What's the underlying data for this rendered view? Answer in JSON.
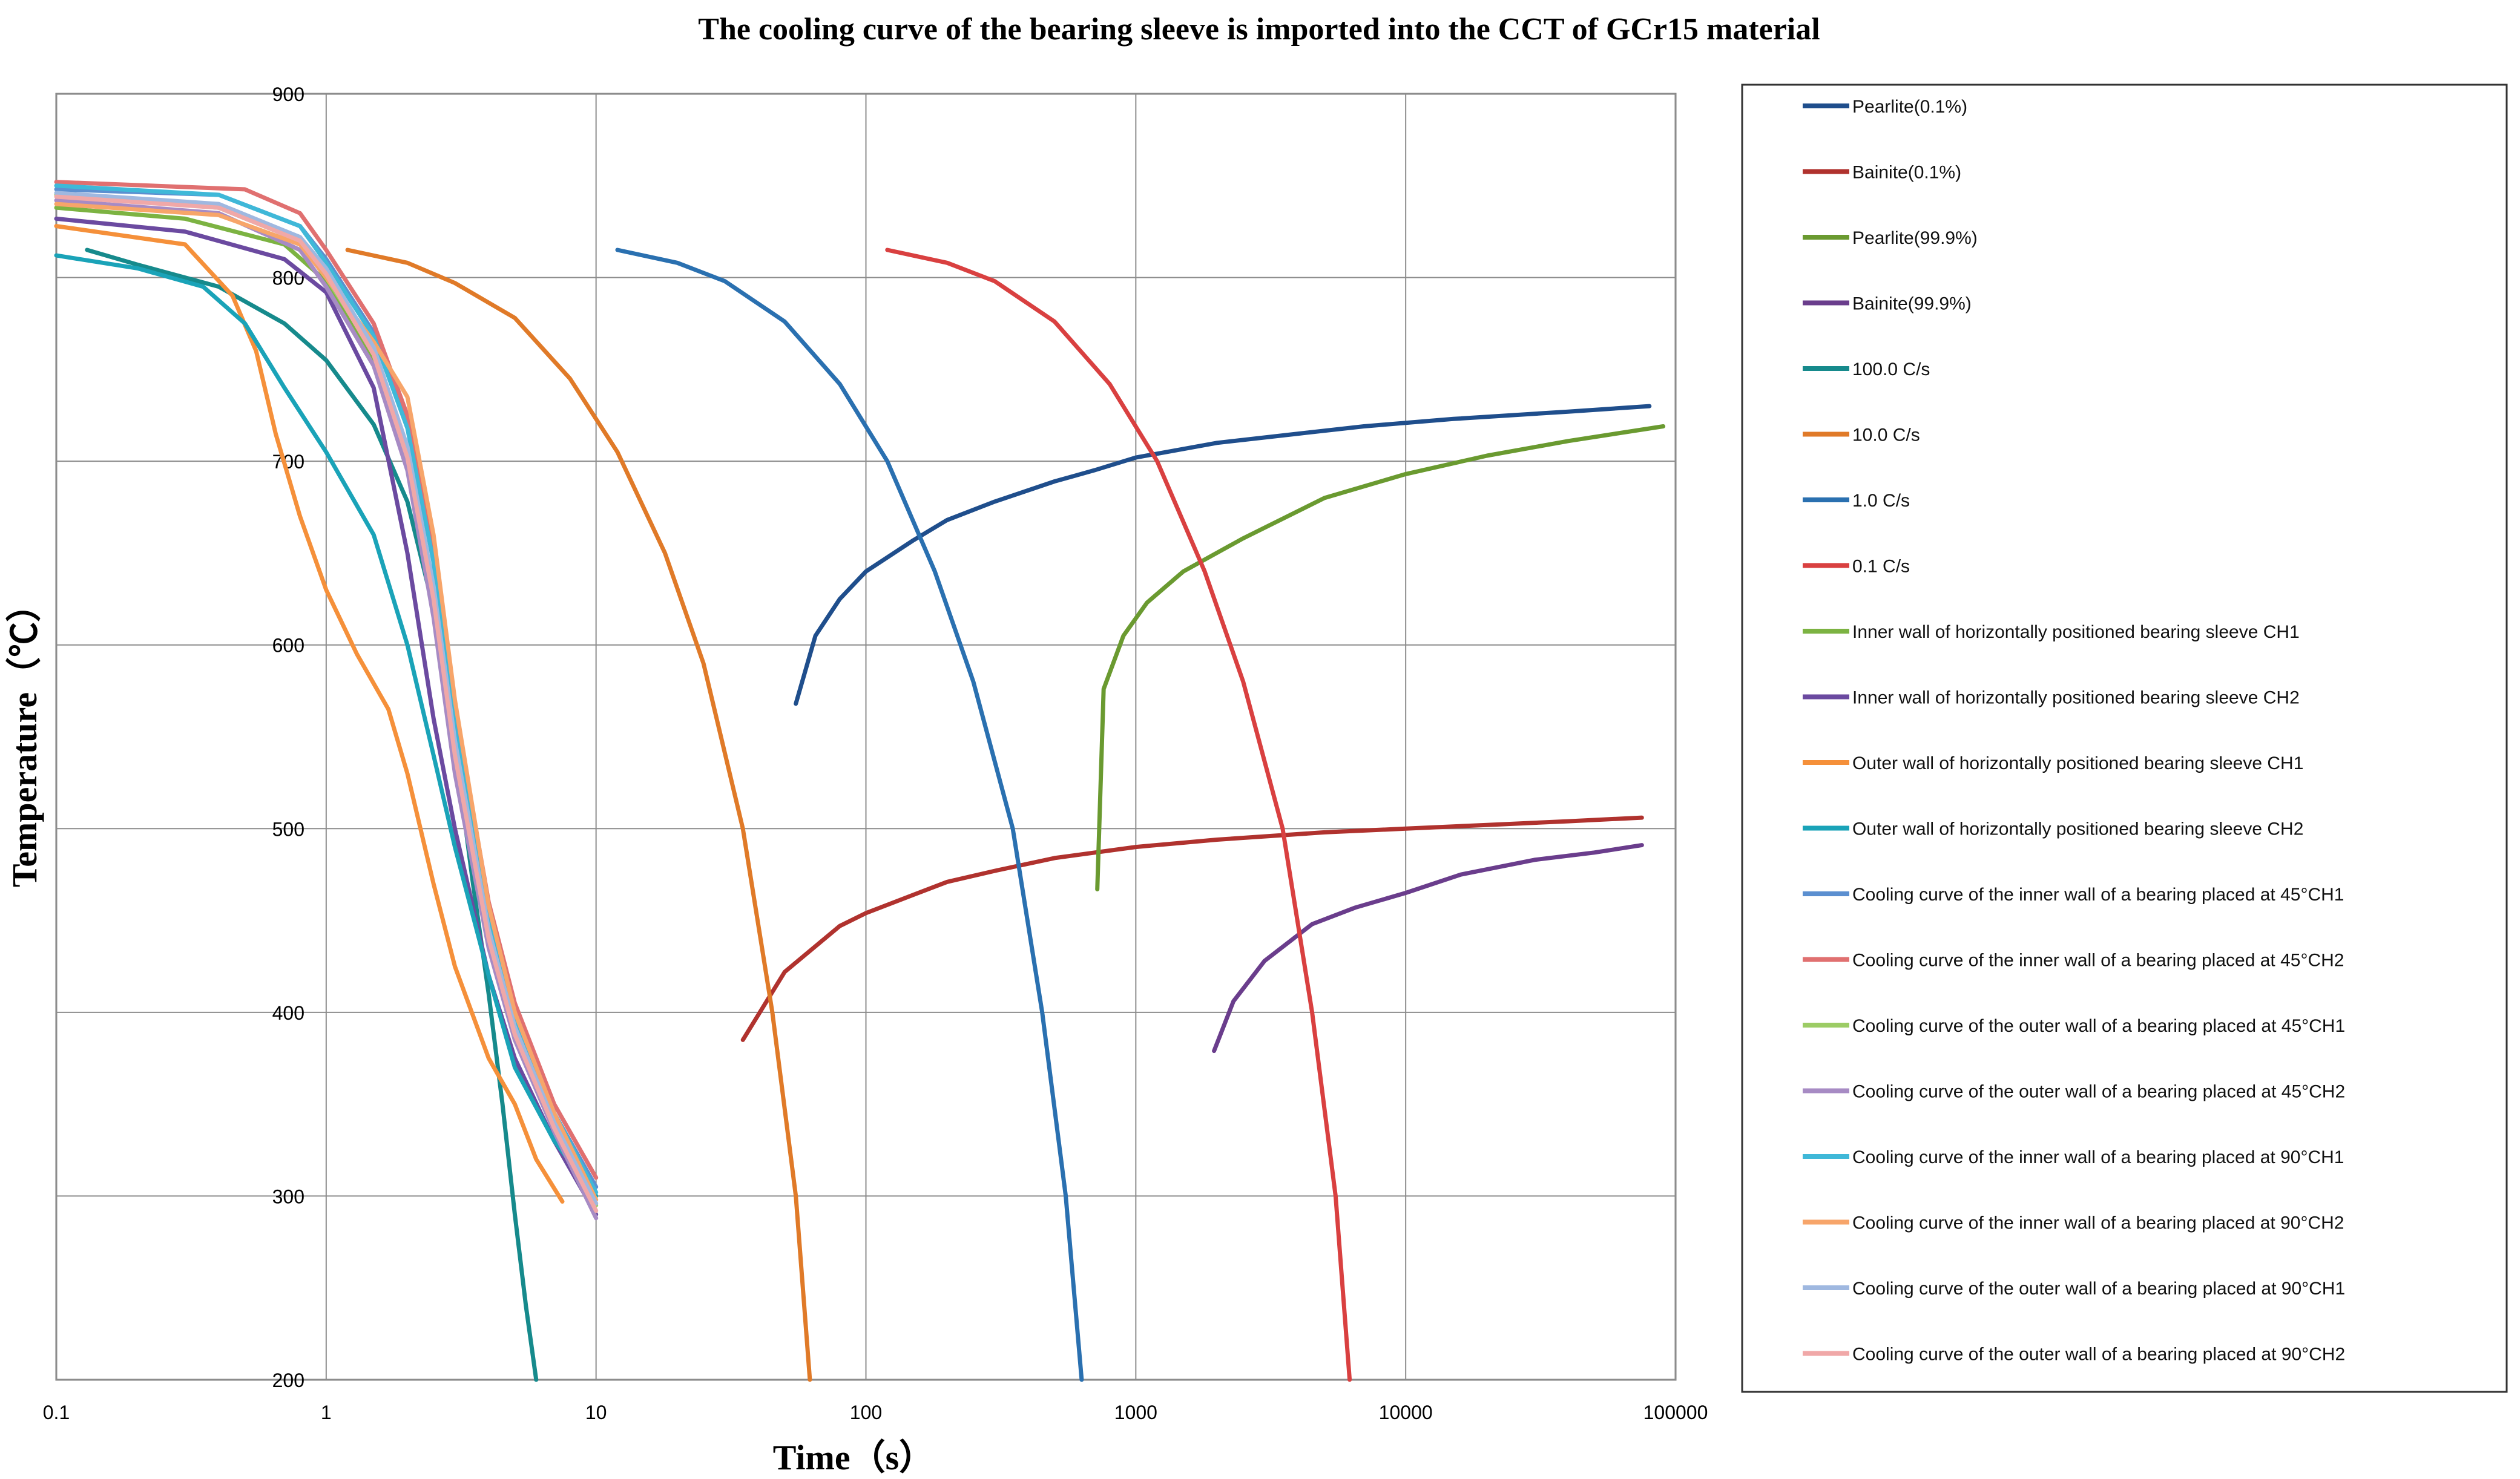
{
  "chart_data": {
    "type": "line",
    "title": "The cooling curve of the bearing sleeve is imported into the CCT of GCr15 material",
    "xlabel": "Time（s）",
    "ylabel": "Temperature（℃）",
    "x_scale": "log",
    "xlim": [
      0.1,
      100000
    ],
    "ylim": [
      200,
      900
    ],
    "x_ticks": [
      {
        "value": 0.1,
        "label": "0.1"
      },
      {
        "value": 1,
        "label": "1"
      },
      {
        "value": 10,
        "label": "10"
      },
      {
        "value": 100,
        "label": "100"
      },
      {
        "value": 1000,
        "label": "1000"
      },
      {
        "value": 10000,
        "label": "10000"
      },
      {
        "value": 100000,
        "label": "100000"
      }
    ],
    "y_ticks": [
      {
        "value": 200,
        "label": "200"
      },
      {
        "value": 300,
        "label": "300"
      },
      {
        "value": 400,
        "label": "400"
      },
      {
        "value": 500,
        "label": "500"
      },
      {
        "value": 600,
        "label": "600"
      },
      {
        "value": 700,
        "label": "700"
      },
      {
        "value": 800,
        "label": "800"
      },
      {
        "value": 900,
        "label": "900"
      }
    ],
    "grid": true,
    "legend_position": "right",
    "series": [
      {
        "name": "Pearlite(0.1%)",
        "color": "#1f4e8c",
        "points": [
          [
            55,
            568
          ],
          [
            65,
            605
          ],
          [
            80,
            625
          ],
          [
            100,
            640
          ],
          [
            150,
            657
          ],
          [
            200,
            668
          ],
          [
            300,
            678
          ],
          [
            500,
            689
          ],
          [
            700,
            695
          ],
          [
            1000,
            702
          ],
          [
            2000,
            710
          ],
          [
            4000,
            715
          ],
          [
            7000,
            719
          ],
          [
            15000,
            723
          ],
          [
            40000,
            727
          ],
          [
            80000,
            730
          ]
        ]
      },
      {
        "name": "Bainite(0.1%)",
        "color": "#b0322e",
        "points": [
          [
            35,
            385
          ],
          [
            50,
            422
          ],
          [
            80,
            447
          ],
          [
            100,
            454
          ],
          [
            150,
            464
          ],
          [
            200,
            471
          ],
          [
            300,
            477
          ],
          [
            500,
            484
          ],
          [
            1000,
            490
          ],
          [
            2000,
            494
          ],
          [
            5000,
            498
          ],
          [
            10000,
            500
          ],
          [
            20000,
            502
          ],
          [
            40000,
            504
          ],
          [
            75000,
            506
          ]
        ]
      },
      {
        "name": "Pearlite(99.9%)",
        "color": "#6a9a30",
        "points": [
          [
            720,
            467
          ],
          [
            760,
            576
          ],
          [
            900,
            605
          ],
          [
            1100,
            623
          ],
          [
            1500,
            640
          ],
          [
            2500,
            658
          ],
          [
            5000,
            680
          ],
          [
            10000,
            693
          ],
          [
            20000,
            703
          ],
          [
            40000,
            711
          ],
          [
            90000,
            719
          ]
        ]
      },
      {
        "name": "Bainite(99.9%)",
        "color": "#6a3d8c",
        "points": [
          [
            1950,
            379
          ],
          [
            2300,
            406
          ],
          [
            3000,
            428
          ],
          [
            4500,
            448
          ],
          [
            6500,
            457
          ],
          [
            10000,
            465
          ],
          [
            16000,
            475
          ],
          [
            30000,
            483
          ],
          [
            50000,
            487
          ],
          [
            75000,
            491
          ]
        ]
      },
      {
        "name": "100.0 C/s",
        "color": "#168a8c",
        "points": [
          [
            0.13,
            815
          ],
          [
            0.2,
            807
          ],
          [
            0.4,
            795
          ],
          [
            0.7,
            775
          ],
          [
            1,
            755
          ],
          [
            1.5,
            720
          ],
          [
            2,
            678
          ],
          [
            2.5,
            620
          ],
          [
            3,
            545
          ],
          [
            3.5,
            470
          ],
          [
            4,
            410
          ],
          [
            4.5,
            350
          ],
          [
            5,
            290
          ],
          [
            5.5,
            240
          ],
          [
            6,
            200
          ]
        ]
      },
      {
        "name": "10.0 C/s",
        "color": "#e07a28",
        "points": [
          [
            1.2,
            815
          ],
          [
            2,
            808
          ],
          [
            3,
            797
          ],
          [
            5,
            778
          ],
          [
            8,
            745
          ],
          [
            12,
            705
          ],
          [
            18,
            650
          ],
          [
            25,
            590
          ],
          [
            35,
            500
          ],
          [
            45,
            400
          ],
          [
            55,
            300
          ],
          [
            62,
            200
          ]
        ]
      },
      {
        "name": "1.0 C/s",
        "color": "#2a70b0",
        "points": [
          [
            12,
            815
          ],
          [
            20,
            808
          ],
          [
            30,
            798
          ],
          [
            50,
            776
          ],
          [
            80,
            742
          ],
          [
            120,
            700
          ],
          [
            180,
            640
          ],
          [
            250,
            580
          ],
          [
            350,
            500
          ],
          [
            450,
            400
          ],
          [
            550,
            300
          ],
          [
            630,
            200
          ]
        ]
      },
      {
        "name": "0.1 C/s",
        "color": "#d94040",
        "points": [
          [
            120,
            815
          ],
          [
            200,
            808
          ],
          [
            300,
            798
          ],
          [
            500,
            776
          ],
          [
            800,
            742
          ],
          [
            1200,
            700
          ],
          [
            1800,
            640
          ],
          [
            2500,
            580
          ],
          [
            3500,
            500
          ],
          [
            4500,
            400
          ],
          [
            5500,
            300
          ],
          [
            6200,
            200
          ]
        ]
      },
      {
        "name": "Inner wall of horizontally positioned bearing sleeve CH1",
        "color": "#7cb342",
        "points": [
          [
            0.1,
            838
          ],
          [
            0.3,
            832
          ],
          [
            0.7,
            818
          ],
          [
            1,
            798
          ],
          [
            1.5,
            755
          ],
          [
            2,
            700
          ],
          [
            2.5,
            620
          ],
          [
            3,
            540
          ],
          [
            4,
            440
          ],
          [
            5,
            385
          ],
          [
            7,
            340
          ],
          [
            10,
            300
          ]
        ]
      },
      {
        "name": "Inner wall of horizontally positioned bearing sleeve CH2",
        "color": "#6b4aa0",
        "points": [
          [
            0.1,
            832
          ],
          [
            0.3,
            825
          ],
          [
            0.7,
            810
          ],
          [
            1,
            792
          ],
          [
            1.5,
            740
          ],
          [
            2,
            650
          ],
          [
            2.5,
            560
          ],
          [
            3,
            500
          ],
          [
            4,
            420
          ],
          [
            5,
            375
          ],
          [
            7,
            330
          ],
          [
            10,
            290
          ]
        ]
      },
      {
        "name": "Outer wall of horizontally positioned bearing sleeve CH1",
        "color": "#f5903a",
        "points": [
          [
            0.1,
            828
          ],
          [
            0.3,
            818
          ],
          [
            0.45,
            790
          ],
          [
            0.55,
            760
          ],
          [
            0.65,
            715
          ],
          [
            0.8,
            670
          ],
          [
            1,
            630
          ],
          [
            1.3,
            595
          ],
          [
            1.7,
            565
          ],
          [
            2,
            530
          ],
          [
            2.5,
            470
          ],
          [
            3,
            425
          ],
          [
            4,
            375
          ],
          [
            5,
            350
          ],
          [
            6,
            320
          ],
          [
            7.5,
            297
          ]
        ]
      },
      {
        "name": "Outer wall of horizontally positioned bearing sleeve CH2",
        "color": "#1aa3b8",
        "points": [
          [
            0.1,
            812
          ],
          [
            0.2,
            805
          ],
          [
            0.35,
            795
          ],
          [
            0.5,
            775
          ],
          [
            0.7,
            740
          ],
          [
            1,
            705
          ],
          [
            1.5,
            660
          ],
          [
            2,
            600
          ],
          [
            2.5,
            540
          ],
          [
            3,
            490
          ],
          [
            4,
            420
          ],
          [
            5,
            370
          ],
          [
            7,
            330
          ],
          [
            10,
            300
          ]
        ]
      },
      {
        "name": "Cooling curve of the inner wall of a bearing placed at 45°CH1",
        "color": "#5b8fd0",
        "points": [
          [
            0.1,
            848
          ],
          [
            0.4,
            845
          ],
          [
            0.8,
            828
          ],
          [
            1,
            810
          ],
          [
            1.5,
            770
          ],
          [
            2,
            720
          ],
          [
            2.5,
            650
          ],
          [
            3,
            560
          ],
          [
            4,
            455
          ],
          [
            5,
            400
          ],
          [
            7,
            345
          ],
          [
            10,
            305
          ]
        ]
      },
      {
        "name": "Cooling curve of the inner wall of a bearing placed at 45°CH2",
        "color": "#e07070",
        "points": [
          [
            0.1,
            852
          ],
          [
            0.5,
            848
          ],
          [
            0.8,
            835
          ],
          [
            1,
            815
          ],
          [
            1.5,
            775
          ],
          [
            2,
            725
          ],
          [
            2.5,
            655
          ],
          [
            3,
            565
          ],
          [
            4,
            460
          ],
          [
            5,
            405
          ],
          [
            7,
            350
          ],
          [
            10,
            310
          ]
        ]
      },
      {
        "name": "Cooling curve of the outer wall of a bearing placed at 45°CH1",
        "color": "#9ccc65",
        "points": [
          [
            0.1,
            845
          ],
          [
            0.4,
            838
          ],
          [
            0.8,
            820
          ],
          [
            1,
            800
          ],
          [
            1.5,
            760
          ],
          [
            2,
            705
          ],
          [
            2.5,
            630
          ],
          [
            3,
            545
          ],
          [
            4,
            445
          ],
          [
            5,
            390
          ],
          [
            7,
            340
          ],
          [
            10,
            295
          ]
        ]
      },
      {
        "name": "Cooling curve of the outer wall of a bearing placed at 45°CH2",
        "color": "#a78bc4",
        "points": [
          [
            0.1,
            842
          ],
          [
            0.4,
            835
          ],
          [
            0.8,
            815
          ],
          [
            1,
            795
          ],
          [
            1.5,
            752
          ],
          [
            2,
            695
          ],
          [
            2.5,
            615
          ],
          [
            3,
            530
          ],
          [
            4,
            435
          ],
          [
            5,
            385
          ],
          [
            7,
            335
          ],
          [
            10,
            288
          ]
        ]
      },
      {
        "name": "Cooling curve of the inner wall of a bearing placed at 90°CH1",
        "color": "#3fb8d8",
        "points": [
          [
            0.1,
            850
          ],
          [
            0.4,
            845
          ],
          [
            0.8,
            828
          ],
          [
            1,
            808
          ],
          [
            1.5,
            768
          ],
          [
            2,
            718
          ],
          [
            2.5,
            645
          ],
          [
            3,
            555
          ],
          [
            4,
            450
          ],
          [
            5,
            398
          ],
          [
            7,
            345
          ],
          [
            10,
            302
          ]
        ]
      },
      {
        "name": "Cooling curve of the inner wall of a bearing placed at 90°CH2",
        "color": "#f7a56a",
        "points": [
          [
            0.1,
            840
          ],
          [
            0.4,
            834
          ],
          [
            0.8,
            818
          ],
          [
            1,
            800
          ],
          [
            1.5,
            765
          ],
          [
            2,
            735
          ],
          [
            2.5,
            660
          ],
          [
            3,
            570
          ],
          [
            4,
            458
          ],
          [
            5,
            400
          ],
          [
            7,
            345
          ],
          [
            10,
            298
          ]
        ]
      },
      {
        "name": "Cooling curve of the outer wall of a bearing placed at 90°CH1",
        "color": "#9fb8e0",
        "points": [
          [
            0.1,
            846
          ],
          [
            0.4,
            840
          ],
          [
            0.8,
            822
          ],
          [
            1,
            805
          ],
          [
            1.5,
            762
          ],
          [
            2,
            708
          ],
          [
            2.5,
            632
          ],
          [
            3,
            548
          ],
          [
            4,
            445
          ],
          [
            5,
            392
          ],
          [
            7,
            340
          ],
          [
            10,
            296
          ]
        ]
      },
      {
        "name": "Cooling curve of the outer wall of a bearing placed at 90°CH2",
        "color": "#f0a8a8",
        "points": [
          [
            0.1,
            844
          ],
          [
            0.4,
            838
          ],
          [
            0.8,
            820
          ],
          [
            1,
            802
          ],
          [
            1.5,
            758
          ],
          [
            2,
            702
          ],
          [
            2.5,
            625
          ],
          [
            3,
            540
          ],
          [
            4,
            440
          ],
          [
            5,
            388
          ],
          [
            7,
            337
          ],
          [
            10,
            292
          ]
        ]
      }
    ]
  }
}
